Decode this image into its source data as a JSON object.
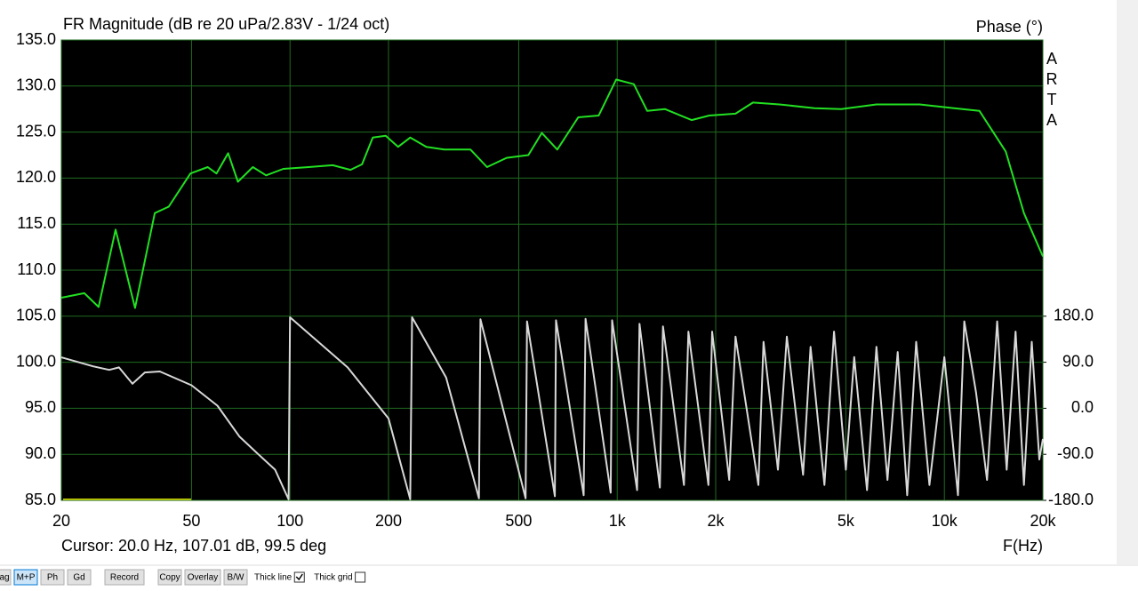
{
  "chart_data": {
    "type": "line",
    "title": "FR Magnitude (dB re 20 uPa/2.83V - 1/24 oct)",
    "y2_label": "Phase (°)",
    "watermark": "ARTA",
    "xlabel": "F(Hz)",
    "cursor": "Cursor: 20.0 Hz, 107.01 dB, 99.5 deg",
    "xscale": "log",
    "grid": true,
    "background": "#000000",
    "grid_color": "#1f6b1f",
    "xlim": [
      20,
      20000
    ],
    "xticks": [
      20,
      50,
      100,
      200,
      500,
      {
        "value": 1000,
        "label": "1k"
      },
      {
        "value": 2000,
        "label": "2k"
      },
      {
        "value": 5000,
        "label": "5k"
      },
      {
        "value": 10000,
        "label": "10k"
      },
      {
        "value": 20000,
        "label": "20k"
      }
    ],
    "ylim": [
      85,
      135
    ],
    "yticks": [
      {
        "value": 85,
        "label": "85.0"
      },
      {
        "value": 90,
        "label": "90.0"
      },
      {
        "value": 95,
        "label": "95.0"
      },
      {
        "value": 100,
        "label": "100.0"
      },
      {
        "value": 105,
        "label": "105.0"
      },
      {
        "value": 110,
        "label": "110.0"
      },
      {
        "value": 115,
        "label": "115.0"
      },
      {
        "value": 120,
        "label": "120.0"
      },
      {
        "value": 125,
        "label": "125.0"
      },
      {
        "value": 130,
        "label": "130.0"
      },
      {
        "value": 135,
        "label": "135.0"
      }
    ],
    "y2lim": [
      -180,
      180
    ],
    "y2range_ylim": [
      85,
      105
    ],
    "y2ticks": [
      {
        "value": -180,
        "label": "-180.0"
      },
      {
        "value": -90,
        "label": "-90.0"
      },
      {
        "value": 0,
        "label": "0.0"
      },
      {
        "value": 90,
        "label": "90.0"
      },
      {
        "value": 180,
        "label": "180.0"
      }
    ],
    "series": [
      {
        "color": "#22e022",
        "x": [
          20,
          23.5,
          26,
          29.3,
          33.6,
          38.6,
          42.6,
          49.6,
          56,
          59.6,
          64.7,
          69.3,
          77,
          84.5,
          95.4,
          114,
          135,
          153,
          166,
          179,
          196,
          214,
          233,
          261,
          296,
          356,
          400,
          459,
          535,
          588,
          656,
          760,
          878,
          993,
          1124,
          1235,
          1398,
          1688,
          1912,
          2300,
          2600,
          3130,
          4010,
          4840,
          6200,
          8400,
          10700,
          12800,
          15400,
          17500,
          20000
        ],
        "values": [
          107.01,
          107.5,
          106.0,
          114.4,
          105.9,
          116.2,
          116.9,
          120.5,
          121.2,
          120.5,
          122.7,
          119.6,
          121.2,
          120.3,
          121.0,
          121.2,
          121.4,
          120.9,
          121.5,
          124.4,
          124.6,
          123.4,
          124.4,
          123.4,
          123.1,
          123.1,
          121.2,
          122.2,
          122.5,
          124.9,
          123.1,
          126.6,
          126.8,
          130.7,
          130.2,
          127.3,
          127.5,
          126.3,
          126.8,
          127.0,
          128.2,
          128.0,
          127.6,
          127.5,
          128.0,
          128.0,
          127.6,
          127.3,
          122.9,
          116.2,
          111.5
        ]
      },
      {
        "color": "#d8d8d8",
        "axis": "y2",
        "x": [
          20,
          25,
          28,
          30,
          33,
          36,
          40,
          50,
          60,
          70,
          80,
          90,
          99,
          100,
          150,
          200,
          233,
          236,
          300,
          378,
          382,
          525,
          530,
          645,
          650,
          790,
          800,
          955,
          965,
          1150,
          1170,
          1350,
          1380,
          1600,
          1650,
          1900,
          1950,
          2200,
          2300,
          2700,
          2800,
          3100,
          3300,
          3700,
          3900,
          4300,
          4600,
          5000,
          5300,
          5800,
          6200,
          6700,
          7200,
          7700,
          8200,
          9000,
          10000,
          11000,
          11500,
          12500,
          13500,
          14500,
          15500,
          16500,
          17500,
          18500,
          19500,
          20000
        ],
        "values": [
          99.5,
          82,
          75,
          80,
          48,
          70,
          72,
          45,
          5,
          -55,
          -90,
          -120,
          -178,
          178,
          80,
          -20,
          -178,
          178,
          60,
          -176,
          174,
          -176,
          170,
          -172,
          172,
          -170,
          175,
          -165,
          172,
          -160,
          165,
          -155,
          160,
          -150,
          150,
          -150,
          150,
          -140,
          140,
          -150,
          130,
          -120,
          140,
          -130,
          120,
          -150,
          150,
          -120,
          100,
          -160,
          120,
          -140,
          110,
          -170,
          130,
          -150,
          100,
          -170,
          170,
          30,
          -140,
          170,
          -120,
          150,
          -150,
          130,
          -100,
          -60
        ]
      }
    ]
  },
  "toolbar": {
    "buttons": [
      "ag",
      "M+P",
      "Ph",
      "Gd",
      "Record",
      "Copy",
      "Overlay",
      "B/W"
    ],
    "checkboxes": [
      {
        "label": "Thick line",
        "checked": true
      },
      {
        "label": "Thick grid",
        "checked": false
      }
    ]
  }
}
